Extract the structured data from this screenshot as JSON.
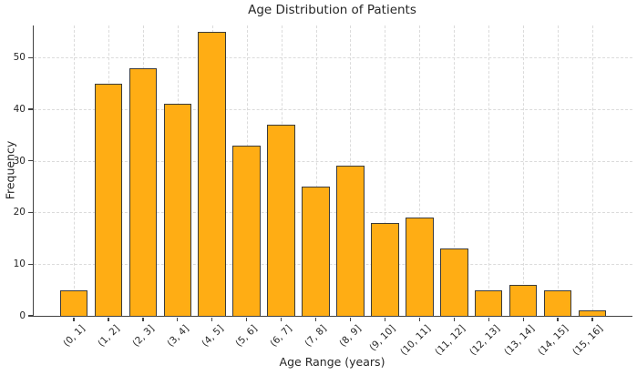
{
  "chart_data": {
    "type": "bar",
    "title": "Age Distribution of Patients",
    "xlabel": "Age Range (years)",
    "ylabel": "Frequency",
    "categories": [
      "(0, 1]",
      "(1, 2]",
      "(2, 3]",
      "(3, 4]",
      "(4, 5]",
      "(5, 6]",
      "(6, 7]",
      "(7, 8]",
      "(8, 9]",
      "(9, 10]",
      "(10, 11]",
      "(11, 12]",
      "(12, 13]",
      "(13, 14]",
      "(14, 15]",
      "(15, 16]"
    ],
    "values": [
      5,
      45,
      48,
      41,
      55,
      33,
      37,
      25,
      29,
      18,
      19,
      13,
      5,
      6,
      5,
      1
    ],
    "yticks": [
      0,
      10,
      20,
      30,
      40,
      50
    ],
    "ylim": [
      0,
      56.2
    ],
    "grid": true,
    "legend": null,
    "x_tick_rotation_deg": 45,
    "colors": {
      "bar_fill": "#FFAD14",
      "bar_edge": "#3B3B3B",
      "grid": "#DBDBDB",
      "spine": "#424242",
      "text": "#262626"
    }
  }
}
